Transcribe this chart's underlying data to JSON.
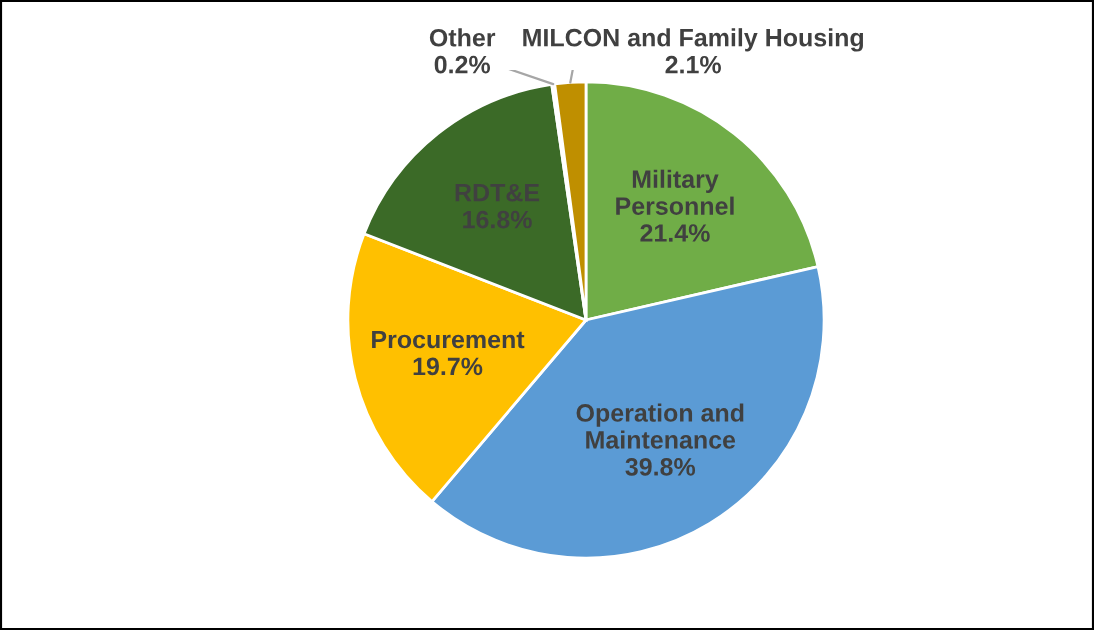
{
  "chart_data": {
    "type": "pie",
    "categories": [
      "Military\nPersonnel",
      "Operation and\nMaintenance",
      "Procurement",
      "RDT&E",
      "Other",
      "MILCON and Family Housing"
    ],
    "values": [
      21.4,
      39.8,
      19.7,
      16.8,
      0.2,
      2.1
    ],
    "value_labels": [
      "21.4%",
      "39.8%",
      "19.7%",
      "16.8%",
      "0.2%",
      "2.1%"
    ],
    "colors": [
      "#70ad47",
      "#5b9bd5",
      "#ffc000",
      "#3b6a27",
      "#f2f2f2",
      "#bf8f00"
    ]
  }
}
